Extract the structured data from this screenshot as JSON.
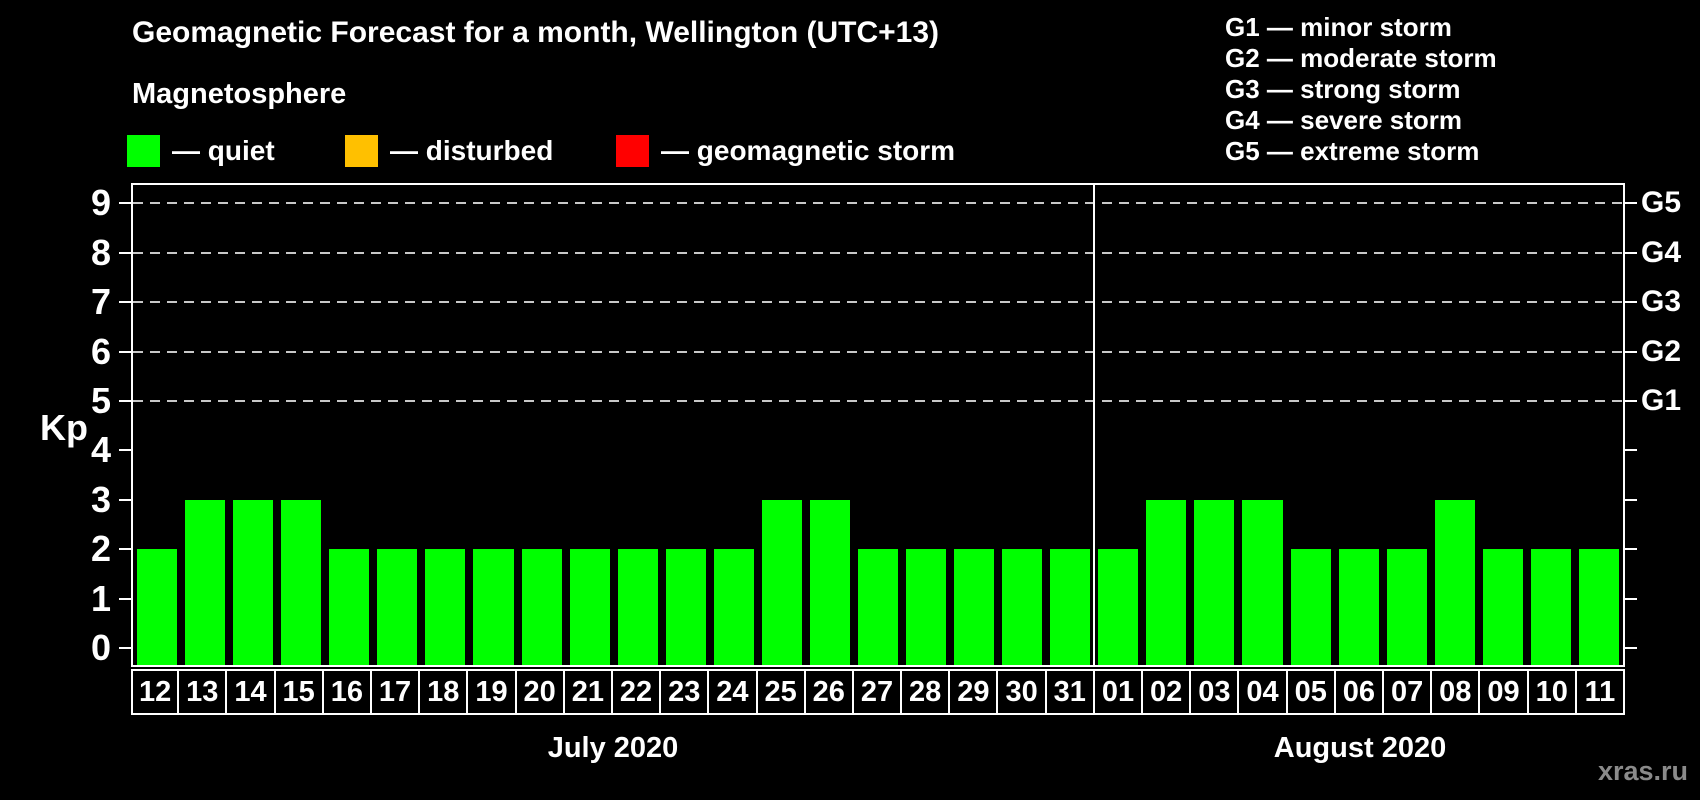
{
  "title": "Geomagnetic Forecast for a month, Wellington (UTC+13)",
  "subtitle": "Magnetosphere",
  "legend": {
    "quiet": {
      "label": "— quiet",
      "color": "#00ff00"
    },
    "disturbed": {
      "label": "— disturbed",
      "color": "#ffc000"
    },
    "storm": {
      "label": "— geomagnetic storm",
      "color": "#ff0000"
    }
  },
  "g_scale_legend": [
    "G1 — minor storm",
    "G2 — moderate storm",
    "G3 — strong storm",
    "G4 — severe storm",
    "G5 — extreme storm"
  ],
  "watermark": "xras.ru",
  "chart_data": {
    "type": "bar",
    "title": "Geomagnetic Forecast for a month, Wellington (UTC+13)",
    "ylabel": "Kp",
    "ylim": [
      0,
      9
    ],
    "yticks": [
      0,
      1,
      2,
      3,
      4,
      5,
      6,
      7,
      8,
      9
    ],
    "gridline_levels": [
      5,
      6,
      7,
      8,
      9
    ],
    "grid": "dashed horizontal at G-storm levels only",
    "legend_position": "top",
    "right_axis": [
      {
        "label": "G1",
        "kp": 5
      },
      {
        "label": "G2",
        "kp": 6
      },
      {
        "label": "G3",
        "kp": 7
      },
      {
        "label": "G4",
        "kp": 8
      },
      {
        "label": "G5",
        "kp": 9
      }
    ],
    "bar_colors": {
      "quiet": "#00ff00",
      "disturbed": "#ffc000",
      "storm": "#ff0000"
    },
    "color_rule": {
      "quiet_below_kp": 4,
      "disturbed_below_kp": 5,
      "storm_at_or_above_kp": 5
    },
    "months": [
      {
        "label": "July 2020",
        "days": [
          "12",
          "13",
          "14",
          "15",
          "16",
          "17",
          "18",
          "19",
          "20",
          "21",
          "22",
          "23",
          "24",
          "25",
          "26",
          "27",
          "28",
          "29",
          "30",
          "31"
        ],
        "values": [
          2,
          3,
          3,
          3,
          2,
          2,
          2,
          2,
          2,
          2,
          2,
          2,
          2,
          3,
          3,
          2,
          2,
          2,
          2,
          2
        ]
      },
      {
        "label": "August 2020",
        "days": [
          "01",
          "02",
          "03",
          "04",
          "05",
          "06",
          "07",
          "08",
          "09",
          "10",
          "11"
        ],
        "values": [
          2,
          3,
          3,
          3,
          2,
          2,
          2,
          3,
          2,
          2,
          2
        ]
      }
    ]
  }
}
